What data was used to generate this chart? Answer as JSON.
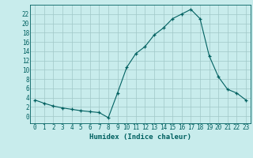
{
  "x": [
    0,
    1,
    2,
    3,
    4,
    5,
    6,
    7,
    8,
    9,
    10,
    11,
    12,
    13,
    14,
    15,
    16,
    17,
    18,
    19,
    20,
    21,
    22,
    23
  ],
  "y": [
    3.5,
    2.8,
    2.2,
    1.8,
    1.5,
    1.2,
    1.0,
    0.8,
    -0.3,
    5.0,
    10.5,
    13.5,
    15.0,
    17.5,
    19.0,
    21.0,
    22.0,
    23.0,
    21.0,
    13.0,
    8.5,
    5.8,
    5.0,
    3.5
  ],
  "line_color": "#006060",
  "marker": "+",
  "marker_size": 3,
  "bg_color": "#c8ecec",
  "grid_color": "#a0c8c8",
  "xlabel": "Humidex (Indice chaleur)",
  "xlim": [
    -0.5,
    23.5
  ],
  "ylim": [
    -1.5,
    24
  ],
  "xticks": [
    0,
    1,
    2,
    3,
    4,
    5,
    6,
    7,
    8,
    9,
    10,
    11,
    12,
    13,
    14,
    15,
    16,
    17,
    18,
    19,
    20,
    21,
    22,
    23
  ],
  "yticks": [
    0,
    2,
    4,
    6,
    8,
    10,
    12,
    14,
    16,
    18,
    20,
    22
  ],
  "xlabel_fontsize": 6.5,
  "tick_fontsize": 5.5
}
